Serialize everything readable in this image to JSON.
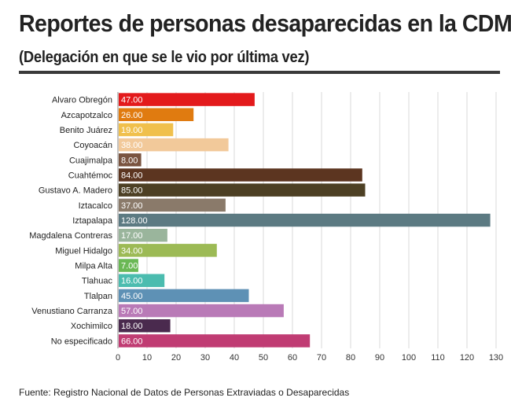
{
  "header": {
    "title": "Reportes de personas desaparecidas en la CDMX",
    "subtitle": "(Delegación en que se le vio por última vez)"
  },
  "footer": {
    "source": "Fuente: Registro Nacional de Datos de Personas Extraviadas o Desaparecidas"
  },
  "chart_data": {
    "type": "bar",
    "orientation": "horizontal",
    "title": "",
    "xlabel": "",
    "ylabel": "",
    "categories": [
      "Alvaro Obregón",
      "Azcapotzalco",
      "Benito Juárez",
      "Coyoacán",
      "Cuajimalpa",
      "Cuahtémoc",
      "Gustavo A. Madero",
      "Iztacalco",
      "Iztapalapa",
      "Magdalena Contreras",
      "Miguel Hidalgo",
      "Milpa Alta",
      "Tlahuac",
      "Tlalpan",
      "Venustiano Carranza",
      "Xochimilco",
      "No especificado"
    ],
    "values": [
      47,
      26,
      19,
      38,
      8,
      84,
      85,
      37,
      128,
      17,
      34,
      7,
      16,
      45,
      57,
      18,
      66
    ],
    "value_labels": [
      "47.00",
      "26.00",
      "19.00",
      "38.00",
      "8.00",
      "84.00",
      "85.00",
      "37.00",
      "128.00",
      "17.00",
      "34.00",
      "7.00",
      "16.00",
      "45.00",
      "57.00",
      "18.00",
      "66.00"
    ],
    "colors": [
      "#e31a1c",
      "#e07b10",
      "#f0c04c",
      "#f2c99a",
      "#7a5440",
      "#5c3520",
      "#4d4024",
      "#8a7a6a",
      "#5c7a82",
      "#9ab59c",
      "#9cba55",
      "#6ab855",
      "#4bbcaf",
      "#5e91b5",
      "#b97ab7",
      "#4a2a4e",
      "#c03c73"
    ],
    "xlim": [
      0,
      130
    ],
    "xticks": [
      "0",
      "10",
      "20",
      "30",
      "40",
      "50",
      "60",
      "70",
      "80",
      "90",
      "100",
      "110",
      "120",
      "130"
    ],
    "grid": true,
    "legend": false
  }
}
